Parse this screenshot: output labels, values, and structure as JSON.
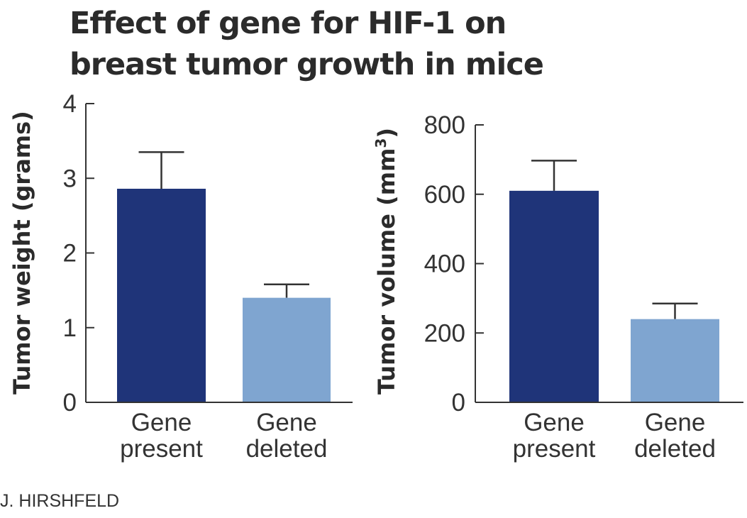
{
  "title_lines": [
    "Effect of gene for HIF-1 on",
    "breast tumor growth in mice"
  ],
  "credit": "J. HIRSHFELD",
  "colors": {
    "gene_present": "#1f3479",
    "gene_deleted": "#7fa5d0",
    "axis": "#333333"
  },
  "chart_data": [
    {
      "type": "bar",
      "ylabel": "Tumor weight (grams)",
      "ylim": [
        0,
        4
      ],
      "yticks": [
        0,
        1,
        2,
        3,
        4
      ],
      "categories": [
        [
          "Gene",
          "present"
        ],
        [
          "Gene",
          "deleted"
        ]
      ],
      "values": [
        2.86,
        1.4
      ],
      "errors": [
        0.49,
        0.18
      ]
    },
    {
      "type": "bar",
      "ylabel": "Tumor volume (mm³)",
      "ylabel_main": "Tumor volume (mm",
      "ylabel_sup": "3",
      "ylabel_close": ")",
      "ylim": [
        0,
        800
      ],
      "yticks": [
        0,
        200,
        400,
        600,
        800
      ],
      "categories": [
        [
          "Gene",
          "present"
        ],
        [
          "Gene",
          "deleted"
        ]
      ],
      "values": [
        610,
        240
      ],
      "errors": [
        87,
        45
      ]
    }
  ]
}
